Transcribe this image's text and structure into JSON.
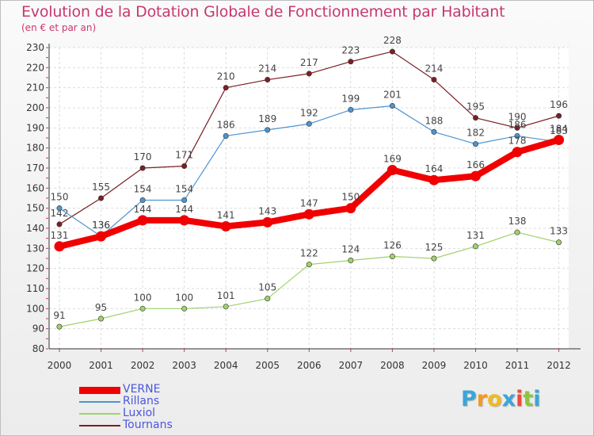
{
  "header": {
    "title": "Evolution de la Dotation Globale de Fonctionnement par Habitant",
    "subtitle": "(en € et par an)"
  },
  "logo": {
    "letters": [
      "P",
      "r",
      "o",
      "x",
      "i",
      "t",
      "i"
    ],
    "colors": [
      "#3aa6d8",
      "#f59a1e",
      "#f0bb1c",
      "#3aa6d8",
      "#e94b3c",
      "#8cc63f",
      "#3aa6d8"
    ]
  },
  "chart_data": {
    "type": "line",
    "title": "Evolution de la Dotation Globale de Fonctionnement par Habitant",
    "subtitle": "(en € et par an)",
    "xlabel": "",
    "ylabel": "",
    "x": [
      "2000",
      "2001",
      "2002",
      "2003",
      "2004",
      "2005",
      "2006",
      "2007",
      "2008",
      "2009",
      "2010",
      "2011",
      "2012"
    ],
    "ylim": [
      80,
      230
    ],
    "yticks": [
      80,
      90,
      100,
      110,
      120,
      130,
      140,
      150,
      160,
      170,
      180,
      190,
      200,
      210,
      220,
      230
    ],
    "grid": true,
    "legend_position": "bottom-left",
    "series": [
      {
        "name": "Tournans",
        "color": "#7a1f24",
        "values": [
          142,
          155,
          170,
          171,
          210,
          214,
          217,
          223,
          228,
          214,
          195,
          190,
          196
        ]
      },
      {
        "name": "Rillans",
        "color": "#4e94cf",
        "values": [
          150,
          136,
          154,
          154,
          186,
          189,
          192,
          199,
          201,
          188,
          182,
          186,
          183
        ]
      },
      {
        "name": "Luxiol",
        "color": "#9fd36a",
        "values": [
          91,
          95,
          100,
          100,
          101,
          105,
          122,
          124,
          126,
          125,
          131,
          138,
          133
        ]
      },
      {
        "name": "VERNE",
        "color": "#f00000",
        "values": [
          131,
          136,
          144,
          144,
          141,
          143,
          147,
          150,
          169,
          164,
          166,
          178,
          184
        ]
      }
    ],
    "legend_order": [
      "VERNE",
      "Rillans",
      "Luxiol",
      "Tournans"
    ]
  }
}
